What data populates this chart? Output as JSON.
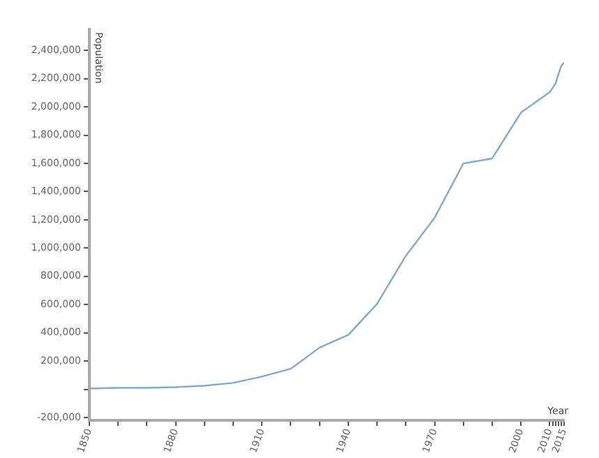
{
  "chart_data": {
    "type": "line",
    "xlabel": "Year",
    "ylabel": "Population",
    "x": [
      1850,
      1860,
      1870,
      1880,
      1890,
      1900,
      1910,
      1920,
      1930,
      1940,
      1950,
      1960,
      1970,
      1980,
      1990,
      2000,
      2010,
      2012,
      2013,
      2014,
      2015
    ],
    "series": [
      {
        "color": "#7aaad6",
        "values": [
          5000,
          10000,
          10000,
          15000,
          25000,
          45000,
          90000,
          145000,
          295000,
          385000,
          605000,
          945000,
          1215000,
          1600000,
          1635000,
          1960000,
          2105000,
          2165000,
          2230000,
          2290000,
          2315000
        ]
      }
    ],
    "xlim": [
      1850,
      2015
    ],
    "xticks": [
      1850,
      {
        "value": 1860,
        "label": null
      },
      {
        "value": 1870,
        "label": null
      },
      1880,
      {
        "value": 1890,
        "label": null
      },
      {
        "value": 1900,
        "label": null
      },
      1910,
      {
        "value": 1920,
        "label": null
      },
      {
        "value": 1930,
        "label": null
      },
      1940,
      {
        "value": 1950,
        "label": null
      },
      {
        "value": 1960,
        "label": null
      },
      1970,
      {
        "value": 1980,
        "label": null
      },
      {
        "value": 1990,
        "label": null
      },
      2000,
      2010,
      {
        "value": 2011,
        "label": null
      },
      {
        "value": 2012,
        "label": null
      },
      {
        "value": 2013,
        "label": null
      },
      {
        "value": 2014,
        "label": null
      },
      2015
    ],
    "ylim": [
      -220000,
      2550000
    ],
    "yticks": [
      {
        "value": -200000,
        "label": "-200,000"
      },
      {
        "value": 0,
        "label": null
      },
      {
        "value": 200000,
        "label": "200,000"
      },
      {
        "value": 400000,
        "label": "400,000"
      },
      {
        "value": 600000,
        "label": "600,000"
      },
      {
        "value": 800000,
        "label": "800,000"
      },
      {
        "value": 1000000,
        "label": "1,000,000"
      },
      {
        "value": 1200000,
        "label": "1,200,000"
      },
      {
        "value": 1400000,
        "label": "1,400,000"
      },
      {
        "value": 1600000,
        "label": "1,600,000"
      },
      {
        "value": 1800000,
        "label": "1,800,000"
      },
      {
        "value": 2000000,
        "label": "2,000,000"
      },
      {
        "value": 2200000,
        "label": "2,200,000"
      },
      {
        "value": 2400000,
        "label": "2,400,000"
      }
    ],
    "grid": false,
    "legend": false,
    "marker": "none",
    "line_style": "solid"
  }
}
